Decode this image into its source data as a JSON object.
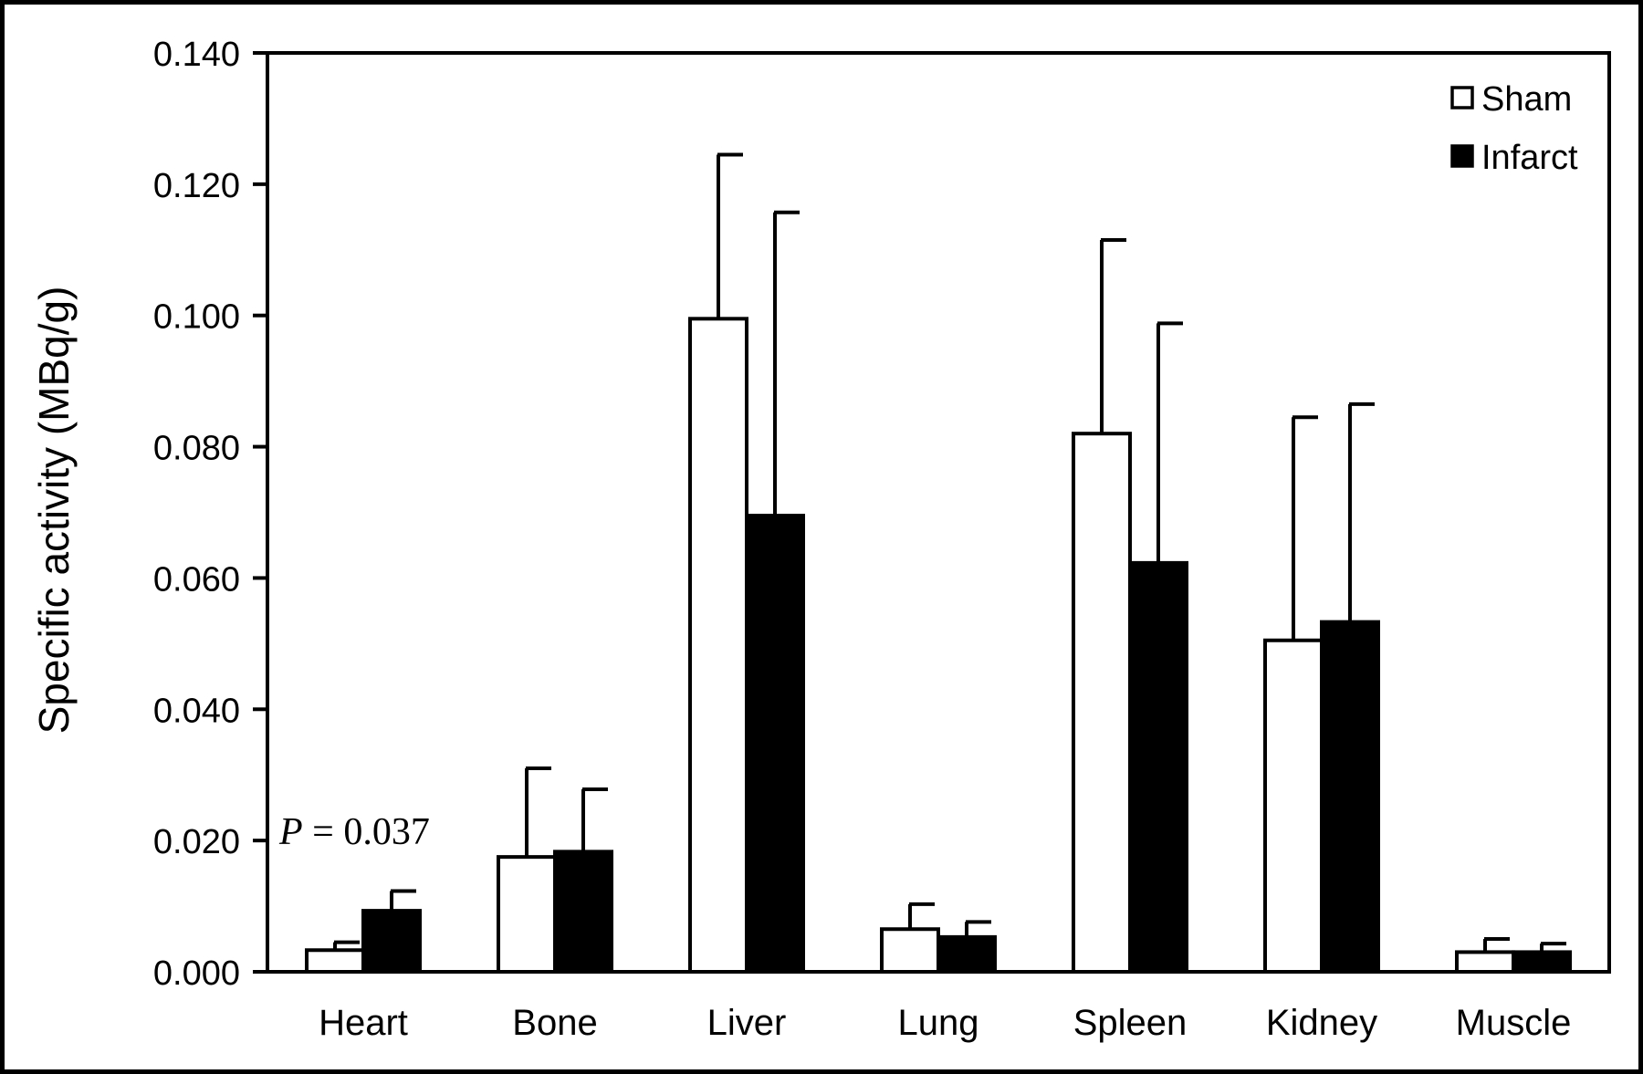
{
  "chart_data": {
    "type": "bar",
    "categories": [
      "Heart",
      "Bone",
      "Liver",
      "Lung",
      "Spleen",
      "Kidney",
      "Muscle"
    ],
    "series": [
      {
        "name": "Sham",
        "fill": "#ffffff",
        "values": [
          0.0033,
          0.0175,
          0.0995,
          0.0065,
          0.082,
          0.0505,
          0.003
        ],
        "errors": [
          0.0012,
          0.0135,
          0.025,
          0.0038,
          0.0295,
          0.034,
          0.002
        ]
      },
      {
        "name": "Infarct",
        "fill": "#000000",
        "values": [
          0.0093,
          0.0183,
          0.0695,
          0.0053,
          0.0623,
          0.0533,
          0.003
        ],
        "errors": [
          0.003,
          0.0095,
          0.0462,
          0.0023,
          0.0365,
          0.0332,
          0.0013
        ]
      }
    ],
    "yticks": [
      "0.000",
      "0.020",
      "0.040",
      "0.060",
      "0.080",
      "0.100",
      "0.120",
      "0.140"
    ],
    "ylim": [
      0,
      0.14
    ],
    "ylabel": "Specific activity (MBq/g)",
    "xlabel": "",
    "title": "",
    "legend_position": "top-right",
    "grid": false,
    "annotations": [
      {
        "text_italic": "P",
        "text_rest": " = 0.037",
        "category": "Heart"
      }
    ]
  }
}
